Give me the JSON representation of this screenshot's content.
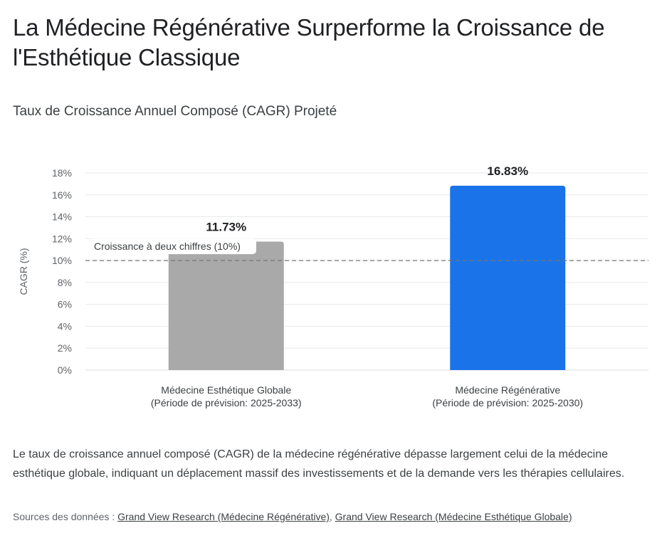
{
  "title": "La Médecine Régénérative Surperforme la Croissance de l'Esthétique Classique",
  "subtitle": "Taux de Croissance Annuel Composé (CAGR) Projeté",
  "description": "Le taux de croissance annuel composé (CAGR) de la médecine régénérative dépasse largement celui de la médecine esthétique globale, indiquant un déplacement massif des investissements et de la demande vers les thérapies cellulaires.",
  "sources": {
    "prefix": "Sources des données : ",
    "links": [
      "Grand View Research (Médecine Régénérative)",
      "Grand View Research (Médecine Esthétique Globale)"
    ],
    "separator": ", "
  },
  "colors": {
    "grey_bar": "#a9a9a9",
    "blue_bar": "#1a73e8",
    "grid": "#e8eaed",
    "ref_line": "#757575"
  },
  "chart_data": {
    "type": "bar",
    "ylabel": "CAGR (%)",
    "xlabel": "",
    "ylim": [
      0,
      18
    ],
    "yticks": [
      0,
      2,
      4,
      6,
      8,
      10,
      12,
      14,
      16,
      18
    ],
    "ytick_labels": [
      "0%",
      "2%",
      "4%",
      "6%",
      "8%",
      "10%",
      "12%",
      "14%",
      "16%",
      "18%"
    ],
    "categories": [
      [
        "Médecine Esthétique Globale",
        "(Période de prévision: 2025-2033)"
      ],
      [
        "Médecine Régénérative",
        "(Période de prévision: 2025-2030)"
      ]
    ],
    "values": [
      11.73,
      16.83
    ],
    "value_labels": [
      "11.73%",
      "16.83%"
    ],
    "bar_colors": [
      "#a9a9a9",
      "#1a73e8"
    ],
    "reference_line": {
      "value": 10,
      "label": "Croissance à deux chiffres (10%)",
      "style": "dashed"
    },
    "grid": true,
    "legend": "none"
  }
}
